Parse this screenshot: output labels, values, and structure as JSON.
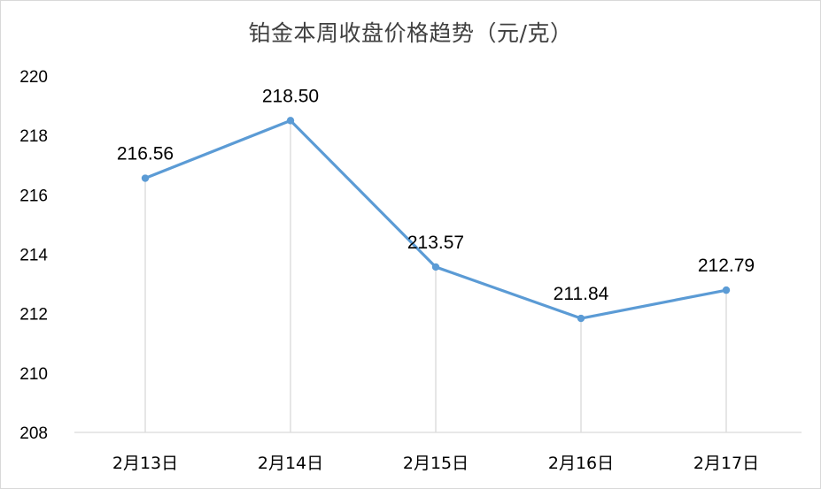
{
  "chart_data": {
    "type": "line",
    "title": "铂金本周收盘价格趋势（元/克）",
    "xlabel": "",
    "ylabel": "",
    "categories": [
      "2月13日",
      "2月14日",
      "2月15日",
      "2月16日",
      "2月17日"
    ],
    "series": [
      {
        "values": [
          216.56,
          218.5,
          213.57,
          211.84,
          212.79
        ],
        "color": "#5b9bd5"
      }
    ],
    "data_labels": [
      "216.56",
      "218.50",
      "213.57",
      "211.84",
      "212.79"
    ],
    "yticks": [
      "208",
      "210",
      "212",
      "214",
      "216",
      "218",
      "220"
    ],
    "ylim": [
      208,
      220
    ],
    "grid": false,
    "drop_lines": true,
    "legend": "none"
  }
}
